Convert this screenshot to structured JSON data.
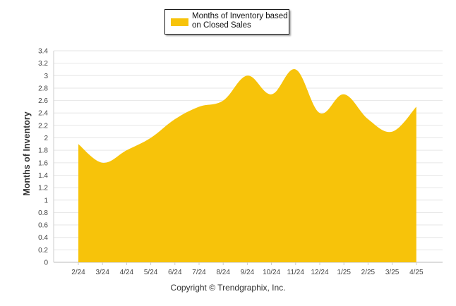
{
  "chart_data": {
    "type": "area",
    "x": [
      "2/24",
      "3/24",
      "4/24",
      "5/24",
      "6/24",
      "7/24",
      "8/24",
      "9/24",
      "10/24",
      "11/24",
      "12/24",
      "1/25",
      "2/25",
      "3/25",
      "4/25"
    ],
    "series": [
      {
        "name": "Months of Inventory based on Closed Sales",
        "values": [
          1.9,
          1.6,
          1.8,
          2.0,
          2.3,
          2.5,
          2.6,
          3.0,
          2.7,
          3.1,
          2.4,
          2.7,
          2.3,
          2.1,
          2.5
        ]
      }
    ],
    "ylabel": "Months of Inventory",
    "xlabel": "",
    "ylim": [
      0,
      3.4
    ],
    "yticks": [
      "0",
      "0.2",
      "0.4",
      "0.6",
      "0.8",
      "1",
      "1.2",
      "1.4",
      "1.6",
      "1.8",
      "2",
      "2.2",
      "2.4",
      "2.6",
      "2.8",
      "3",
      "3.2",
      "3.4"
    ],
    "grid": true,
    "legend_position": "top-center",
    "color": "#f7c30a"
  },
  "legend": {
    "label": "Months of Inventory based\non Closed Sales"
  },
  "axis": {
    "ylabel": "Months of Inventory"
  },
  "footer": {
    "copyright": "Copyright © Trendgraphix, Inc."
  }
}
